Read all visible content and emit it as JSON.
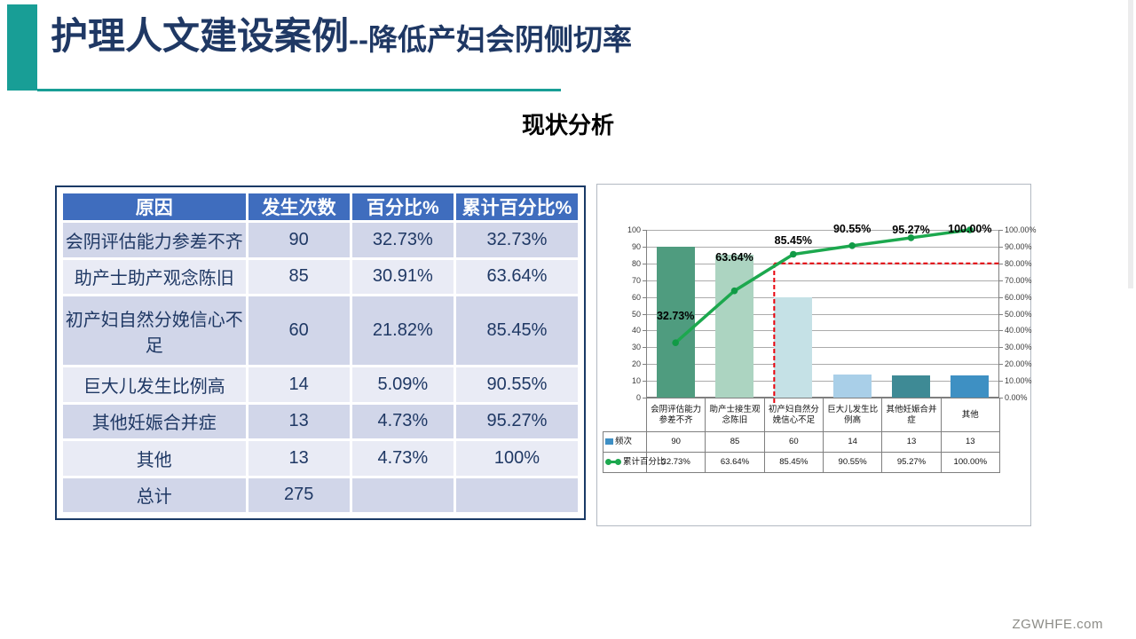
{
  "slide": {
    "title_main": "护理人文建设案例",
    "title_sub": "--降低产妇会阴侧切率",
    "section_heading": "现状分析",
    "footer": "ZGWHFE.com",
    "accent_color": "#189E96",
    "title_color": "#1F3864"
  },
  "table": {
    "headers": [
      "原因",
      "发生次数",
      "百分比%",
      "累计百分比%"
    ],
    "rows": [
      [
        "会阴评估能力参差不齐",
        "90",
        "32.73%",
        "32.73%"
      ],
      [
        "助产士助产观念陈旧",
        "85",
        "30.91%",
        "63.64%"
      ],
      [
        "初产妇自然分娩信心不足",
        "60",
        "21.82%",
        "85.45%"
      ],
      [
        "巨大儿发生比例高",
        "14",
        "5.09%",
        "90.55%"
      ],
      [
        "其他妊娠合并症",
        "13",
        "4.73%",
        "95.27%"
      ],
      [
        "其他",
        "13",
        "4.73%",
        "100%"
      ],
      [
        "总计",
        "275",
        "",
        ""
      ]
    ],
    "header_bg": "#3F6DBE"
  },
  "chart_data": {
    "type": "bar",
    "subtype": "pareto-bar-plus-line",
    "categories": [
      "会阴评估能力参差不齐",
      "助产士接生观念陈旧",
      "初产妇自然分娩信心不足",
      "巨大儿发生比例高",
      "其他妊娠合并症",
      "其他"
    ],
    "series": [
      {
        "name": "频次",
        "type": "bar",
        "values": [
          90,
          85,
          60,
          14,
          13,
          13
        ]
      },
      {
        "name": "累计百分比",
        "type": "line",
        "values": [
          32.73,
          63.64,
          85.45,
          90.55,
          95.27,
          100.0
        ],
        "point_labels": [
          "32.73%",
          "63.64%",
          "85.45%",
          "90.55%",
          "95.27%",
          "100.00%"
        ],
        "table_labels": [
          "32.73%",
          "63.64%",
          "85.45%",
          "90.55%",
          "95.27%",
          "100.00%"
        ]
      }
    ],
    "left_axis": {
      "min": 0,
      "max": 100,
      "step": 10,
      "tick_labels": [
        "0",
        "10",
        "20",
        "30",
        "40",
        "50",
        "60",
        "70",
        "80",
        "90",
        "100"
      ]
    },
    "right_axis": {
      "min": 0,
      "max": 100,
      "step": 10,
      "tick_labels": [
        "0.00%",
        "10.00%",
        "20.00%",
        "30.00%",
        "40.00%",
        "50.00%",
        "60.00%",
        "70.00%",
        "80.00%",
        "90.00%",
        "100.00%"
      ]
    },
    "bar_colors": [
      "#4F9C7F",
      "#ACD4C1",
      "#C5E1E6",
      "#A9CFE8",
      "#3E8A95",
      "#3E90C3"
    ],
    "line_color": "#1CA84E",
    "marker_color": "#119A46",
    "legend_bar_swatch": "#3E8FC4",
    "reference_line": {
      "value": 80,
      "color": "#E8000B",
      "style": "dashed"
    },
    "grid": true,
    "legend_position": "table-left",
    "title": "",
    "xlabel": "",
    "ylabel": "",
    "ylim_left": [
      0,
      100
    ],
    "ylim_right": [
      0,
      100
    ]
  }
}
